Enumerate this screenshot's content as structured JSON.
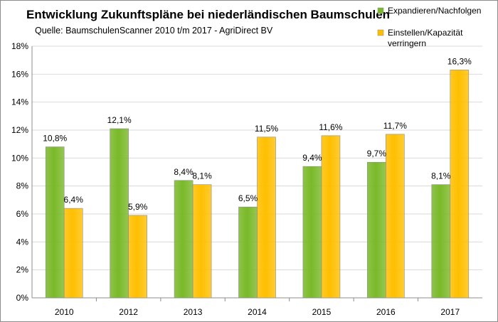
{
  "chart_data": {
    "type": "bar",
    "title": "Entwicklung Zukunftspläne bei niederländischen Baumschulen",
    "subtitle": "Quelle: BaumschulenScanner 2010 t/m 2017 - AgriDirect BV",
    "categories": [
      "2010",
      "2012",
      "2013",
      "2014",
      "2015",
      "2016",
      "2017"
    ],
    "series": [
      {
        "name": "Expandieren/Nachfolgen",
        "color": "#7ab929",
        "values": [
          10.8,
          12.1,
          8.4,
          6.5,
          9.4,
          9.7,
          8.1
        ],
        "labels": [
          "10,8%",
          "12,1%",
          "8,4%",
          "6,5%",
          "9,4%",
          "9,7%",
          "8,1%"
        ]
      },
      {
        "name": "Einstellen/Kapazität verringern",
        "name_lines": [
          "Einstellen/Kapazität",
          "verringern"
        ],
        "color": "#ffbf00",
        "values": [
          6.4,
          5.9,
          8.1,
          11.5,
          11.6,
          11.7,
          16.3
        ],
        "labels": [
          "6,4%",
          "5,9%",
          "8,1%",
          "11,5%",
          "11,6%",
          "11,7%",
          "16,3%"
        ]
      }
    ],
    "ylim": [
      0,
      18
    ],
    "yticks": [
      0,
      2,
      4,
      6,
      8,
      10,
      12,
      14,
      16,
      18
    ],
    "yticklabels": [
      "0%",
      "2%",
      "4%",
      "6%",
      "8%",
      "10%",
      "12%",
      "14%",
      "16%",
      "18%"
    ],
    "xlabel": "",
    "ylabel": "",
    "grid": true,
    "legend": "top-right"
  }
}
